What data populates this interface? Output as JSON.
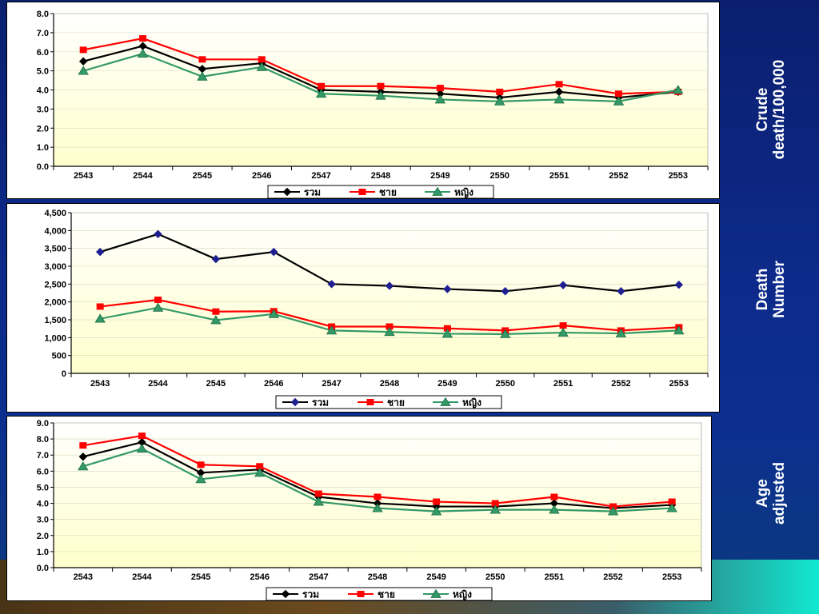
{
  "side_labels": {
    "crude": "Crude\ndeath/100,000",
    "death": "Death\nNumber",
    "age": "Age\nadjusted"
  },
  "colors": {
    "total": "#000000",
    "total_marker_chart2": "#1f1f8f",
    "male": "#ff0000",
    "female": "#339966",
    "plot_bg_top": "#ffffff",
    "plot_bg_bottom": "#ffffcc"
  },
  "legend": [
    "รวม",
    "ชาย",
    "หญิง"
  ],
  "chart_data": [
    {
      "type": "line",
      "categories": [
        "2543",
        "2544",
        "2545",
        "2546",
        "2547",
        "2548",
        "2549",
        "2550",
        "2551",
        "2552",
        "2553"
      ],
      "ylim": [
        0,
        8
      ],
      "ytick_step": 1,
      "ytick_labels": [
        "0.0",
        "1.0",
        "2.0",
        "3.0",
        "4.0",
        "5.0",
        "6.0",
        "7.0",
        "8.0"
      ],
      "series": [
        {
          "name": "รวม",
          "values": [
            5.5,
            6.3,
            5.1,
            5.4,
            4.0,
            3.9,
            3.8,
            3.6,
            3.9,
            3.6,
            3.9
          ]
        },
        {
          "name": "ชาย",
          "values": [
            6.1,
            6.7,
            5.6,
            5.6,
            4.2,
            4.2,
            4.1,
            3.9,
            4.3,
            3.8,
            3.9
          ]
        },
        {
          "name": "หญิง",
          "values": [
            5.0,
            5.9,
            4.7,
            5.2,
            3.8,
            3.7,
            3.5,
            3.4,
            3.5,
            3.4,
            4.0
          ]
        }
      ],
      "grid": true,
      "legend_position": "bottom"
    },
    {
      "type": "line",
      "categories": [
        "2543",
        "2544",
        "2545",
        "2546",
        "2547",
        "2548",
        "2549",
        "2550",
        "2551",
        "2552",
        "2553"
      ],
      "ylim": [
        0,
        4500
      ],
      "ytick_step": 500,
      "ytick_labels": [
        "0",
        "500",
        "1,000",
        "1,500",
        "2,000",
        "2,500",
        "3,000",
        "3,500",
        "4,000",
        "4,500"
      ],
      "series": [
        {
          "name": "รวม",
          "values": [
            3400,
            3900,
            3200,
            3400,
            2500,
            2450,
            2360,
            2300,
            2470,
            2300,
            2480
          ]
        },
        {
          "name": "ชาย",
          "values": [
            1870,
            2060,
            1730,
            1740,
            1310,
            1310,
            1260,
            1200,
            1340,
            1200,
            1290
          ]
        },
        {
          "name": "หญิง",
          "values": [
            1530,
            1840,
            1490,
            1660,
            1200,
            1160,
            1110,
            1100,
            1140,
            1120,
            1200
          ]
        }
      ],
      "grid": true,
      "legend_position": "bottom"
    },
    {
      "type": "line",
      "categories": [
        "2543",
        "2544",
        "2545",
        "2546",
        "2547",
        "2548",
        "2549",
        "2550",
        "2551",
        "2552",
        "2553"
      ],
      "ylim": [
        0,
        9
      ],
      "ytick_step": 1,
      "ytick_labels": [
        "0.0",
        "1.0",
        "2.0",
        "3.0",
        "4.0",
        "5.0",
        "6.0",
        "7.0",
        "8.0",
        "9.0"
      ],
      "series": [
        {
          "name": "รวม",
          "values": [
            6.9,
            7.8,
            5.9,
            6.1,
            4.4,
            4.0,
            3.8,
            3.8,
            4.0,
            3.7,
            3.9
          ]
        },
        {
          "name": "ชาย",
          "values": [
            7.6,
            8.2,
            6.4,
            6.3,
            4.6,
            4.4,
            4.1,
            4.0,
            4.4,
            3.8,
            4.1
          ]
        },
        {
          "name": "หญิง",
          "values": [
            6.3,
            7.4,
            5.5,
            5.9,
            4.1,
            3.7,
            3.5,
            3.6,
            3.6,
            3.5,
            3.7
          ]
        }
      ],
      "grid": true,
      "legend_position": "bottom"
    }
  ]
}
